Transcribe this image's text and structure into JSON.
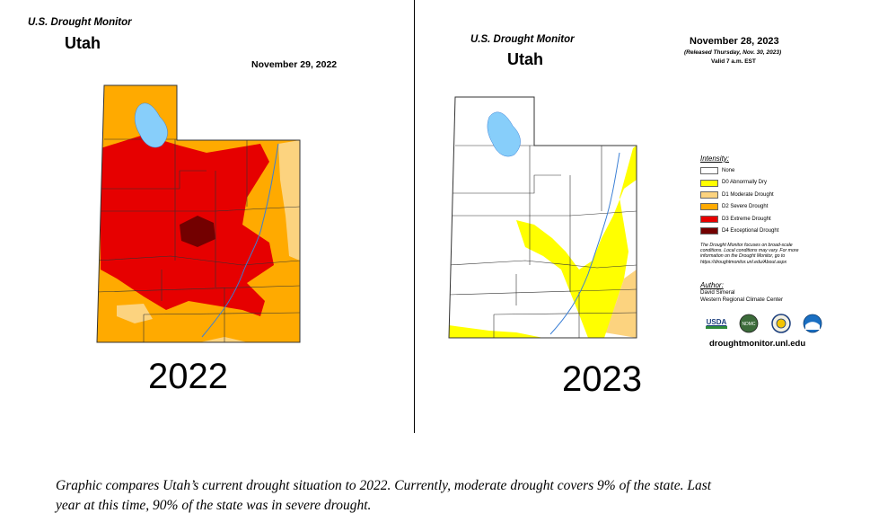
{
  "left": {
    "header": "U.S. Drought Monitor",
    "state": "Utah",
    "date": "November 29, 2022",
    "year_label": "2022"
  },
  "right": {
    "header": "U.S. Drought Monitor",
    "state": "Utah",
    "date": "November 28, 2023",
    "released": "(Released Thursday, Nov. 30, 2023)",
    "valid": "Valid 7 a.m. EST",
    "year_label": "2023"
  },
  "legend": {
    "title": "Intensity:",
    "items": [
      {
        "label": "None",
        "color": "#ffffff"
      },
      {
        "label": "D0 Abnormally Dry",
        "color": "#ffff00"
      },
      {
        "label": "D1 Moderate Drought",
        "color": "#fcd37f"
      },
      {
        "label": "D2 Severe Drought",
        "color": "#ffaa00"
      },
      {
        "label": "D3 Extreme Drought",
        "color": "#e60000"
      },
      {
        "label": "D4 Exceptional Drought",
        "color": "#730000"
      }
    ],
    "note_lines": [
      "The Drought Monitor focuses on broad-scale",
      "conditions. Local conditions may vary. For more",
      "information on the Drought Monitor, go to",
      "https://droughtmonitor.unl.edu/About.aspx"
    ],
    "author_heading": "Author:",
    "author_name": "David Simeral",
    "author_org": "Western Regional Climate Center",
    "logos": [
      "USDA",
      "NDMC",
      "DOC",
      "NOAA"
    ],
    "url": "droughtmonitor.unl.edu"
  },
  "caption_lines": [
    "Graphic compares Utah’s current drought situation to 2022. Currently, moderate drought covers 9% of the state. Last",
    "year at this time, 90% of the state was in severe drought."
  ],
  "colors": {
    "lake": "#87cefa",
    "river": "#3a7fd5",
    "border": "#333333"
  }
}
